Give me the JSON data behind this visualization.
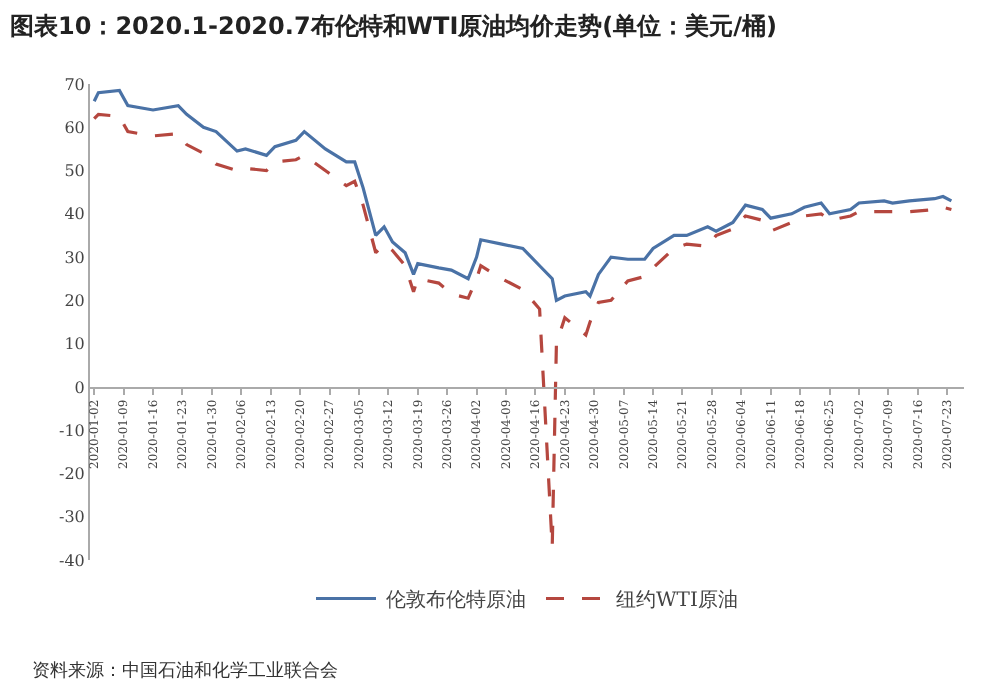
{
  "chart_data": {
    "type": "line",
    "title": "图表10：2020.1-2020.7布伦特和WTI原油均价走势(单位：美元/桶)",
    "annotations": [
      "资料来源：中国石油和化学工业联合会"
    ],
    "x": [
      "2020-01-02",
      "2020-01-03",
      "2020-01-08",
      "2020-01-10",
      "2020-01-16",
      "2020-01-22",
      "2020-01-24",
      "2020-01-28",
      "2020-01-31",
      "2020-02-05",
      "2020-02-07",
      "2020-02-12",
      "2020-02-14",
      "2020-02-19",
      "2020-02-21",
      "2020-02-26",
      "2020-03-02",
      "2020-03-04",
      "2020-03-06",
      "2020-03-09",
      "2020-03-11",
      "2020-03-13",
      "2020-03-16",
      "2020-03-18",
      "2020-03-19",
      "2020-03-24",
      "2020-03-27",
      "2020-03-31",
      "2020-04-02",
      "2020-04-03",
      "2020-04-08",
      "2020-04-13",
      "2020-04-17",
      "2020-04-20",
      "2020-04-21",
      "2020-04-23",
      "2020-04-28",
      "2020-04-29",
      "2020-05-01",
      "2020-05-04",
      "2020-05-08",
      "2020-05-12",
      "2020-05-14",
      "2020-05-19",
      "2020-05-22",
      "2020-05-27",
      "2020-05-29",
      "2020-06-02",
      "2020-06-05",
      "2020-06-09",
      "2020-06-11",
      "2020-06-16",
      "2020-06-19",
      "2020-06-23",
      "2020-06-25",
      "2020-06-30",
      "2020-07-02",
      "2020-07-08",
      "2020-07-10",
      "2020-07-14",
      "2020-07-20",
      "2020-07-22",
      "2020-07-24"
    ],
    "series": [
      {
        "name": "伦敦布伦特原油",
        "color": "#4a72a6",
        "line_style": "solid",
        "values": [
          66,
          68,
          68.5,
          65,
          64,
          65,
          63,
          60,
          59,
          54.5,
          55,
          53.5,
          55.5,
          57,
          59,
          55,
          52,
          52,
          46,
          35,
          37,
          33.5,
          31,
          26,
          28.5,
          27.5,
          27,
          25,
          30,
          34,
          33,
          32,
          28,
          25,
          20,
          21,
          22,
          21,
          26,
          30,
          29.5,
          29.5,
          32,
          35,
          35,
          37,
          36,
          38,
          42,
          41,
          39,
          40,
          41.5,
          42.5,
          40,
          41,
          42.5,
          43,
          42.5,
          43,
          43.5,
          44,
          43
        ]
      },
      {
        "name": "纽约WTI原油",
        "color": "#b5473f",
        "line_style": "dashed",
        "values": [
          62,
          63,
          62.5,
          59,
          58,
          58.5,
          56,
          54,
          51.5,
          50,
          50.5,
          50,
          52,
          52.5,
          53.5,
          50,
          46.5,
          47.5,
          42,
          31,
          33,
          31.5,
          28,
          22,
          25,
          24,
          21.5,
          20.5,
          25,
          28,
          25,
          22.5,
          18,
          -37,
          10,
          16,
          12,
          15,
          19.5,
          20,
          24.5,
          25.5,
          27.5,
          32,
          33,
          32.5,
          35,
          36.5,
          39.5,
          38.5,
          36,
          38,
          39.5,
          40,
          38.5,
          39.5,
          40.5,
          40.5,
          40.5,
          40.5,
          41,
          41.5,
          41
        ]
      }
    ],
    "xlim": [
      "2020-01-01",
      "2020-07-27"
    ],
    "xticks": [
      "2020-01-02",
      "2020-01-09",
      "2020-01-16",
      "2020-01-23",
      "2020-01-30",
      "2020-02-06",
      "2020-02-13",
      "2020-02-20",
      "2020-02-27",
      "2020-03-05",
      "2020-03-12",
      "2020-03-19",
      "2020-03-26",
      "2020-04-02",
      "2020-04-09",
      "2020-04-16",
      "2020-04-23",
      "2020-04-30",
      "2020-05-07",
      "2020-05-14",
      "2020-05-21",
      "2020-05-28",
      "2020-06-04",
      "2020-06-11",
      "2020-06-18",
      "2020-06-25",
      "2020-07-02",
      "2020-07-09",
      "2020-07-16",
      "2020-07-23"
    ],
    "ylim": [
      -40,
      70
    ],
    "yticks": [
      -40,
      -30,
      -20,
      -10,
      0,
      10,
      20,
      30,
      40,
      50,
      60,
      70
    ],
    "legend": "bottom",
    "marker": "none"
  }
}
